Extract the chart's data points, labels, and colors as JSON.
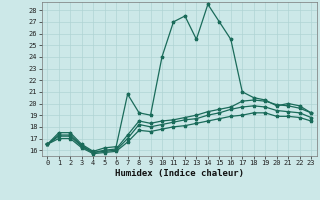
{
  "xlabel": "Humidex (Indice chaleur)",
  "bg_color": "#cce8e8",
  "grid_color": "#b0d4d4",
  "line_color": "#1a6b5a",
  "xlim": [
    -0.5,
    23.5
  ],
  "ylim": [
    15.5,
    28.7
  ],
  "xticks": [
    0,
    1,
    2,
    3,
    4,
    5,
    6,
    7,
    8,
    9,
    10,
    11,
    12,
    13,
    14,
    15,
    16,
    17,
    18,
    19,
    20,
    21,
    22,
    23
  ],
  "yticks": [
    16,
    17,
    18,
    19,
    20,
    21,
    22,
    23,
    24,
    25,
    26,
    27,
    28
  ],
  "line_max": [
    16.5,
    17.5,
    17.5,
    16.5,
    15.9,
    16.2,
    16.3,
    20.8,
    19.2,
    19.0,
    24.0,
    27.0,
    27.5,
    25.5,
    28.5,
    27.0,
    25.5,
    21.0,
    20.5,
    20.3,
    19.8,
    20.0,
    19.8,
    19.2
  ],
  "line_mid": [
    16.5,
    17.3,
    17.3,
    16.4,
    15.8,
    16.0,
    16.1,
    17.3,
    18.5,
    18.3,
    18.5,
    18.6,
    18.8,
    19.0,
    19.3,
    19.5,
    19.7,
    20.2,
    20.3,
    20.2,
    19.9,
    19.8,
    19.6,
    19.2
  ],
  "line_mid2": [
    16.5,
    17.2,
    17.2,
    16.3,
    15.8,
    15.9,
    16.0,
    17.0,
    18.2,
    18.0,
    18.2,
    18.4,
    18.6,
    18.7,
    19.0,
    19.2,
    19.5,
    19.7,
    19.8,
    19.7,
    19.4,
    19.3,
    19.2,
    18.8
  ],
  "line_min": [
    16.5,
    17.0,
    17.0,
    16.2,
    15.7,
    15.8,
    15.9,
    16.7,
    17.7,
    17.6,
    17.8,
    18.0,
    18.1,
    18.3,
    18.5,
    18.7,
    18.9,
    19.0,
    19.2,
    19.2,
    18.9,
    18.9,
    18.8,
    18.5
  ]
}
